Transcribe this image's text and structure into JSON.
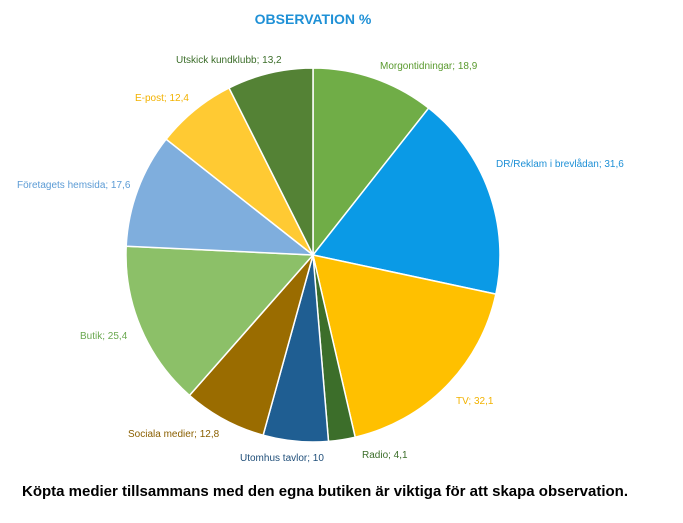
{
  "chart_data": {
    "type": "pie",
    "title": "OBSERVATION  %",
    "title_color": "#1E90D6",
    "start": "top",
    "direction": "clockwise",
    "labels": [
      {
        "name": "Morgontidningar",
        "value": 18.9,
        "text": "Morgontidningar; 18,9",
        "color": "#70AD47",
        "label_color": "#5A9A2E"
      },
      {
        "name": "DR/Reklam i brevlådan",
        "value": 31.6,
        "text": "DR/Reklam i brevlådan; 31,6",
        "color": "#0A9AE6",
        "label_color": "#1E90D6"
      },
      {
        "name": "TV",
        "value": 32.1,
        "text": "TV; 32,1",
        "color": "#FFC000",
        "label_color": "#F2B200"
      },
      {
        "name": "Radio",
        "value": 4.1,
        "text": "Radio; 4,1",
        "color": "#3C6E2A",
        "label_color": "#3C6E2A"
      },
      {
        "name": "Utomhus tavlor",
        "value": 10,
        "text": "Utomhus tavlor; 10",
        "color": "#1F5E92",
        "label_color": "#1F4E79"
      },
      {
        "name": "Sociala medier",
        "value": 12.8,
        "text": "Sociala medier; 12,8",
        "color": "#9A6C00",
        "label_color": "#8A5F00"
      },
      {
        "name": "Butik",
        "value": 25.4,
        "text": "Butik; 25,4",
        "color": "#8CC068",
        "label_color": "#6AA84F"
      },
      {
        "name": "Företagets hemsida",
        "value": 17.6,
        "text": "Företagets hemsida; 17,6",
        "color": "#7FAEDD",
        "label_color": "#5B9BD5"
      },
      {
        "name": "E-post",
        "value": 12.4,
        "text": "E-post; 12,4",
        "color": "#FFCA33",
        "label_color": "#F2B200"
      },
      {
        "name": "Utskick kundklubb",
        "value": 13.2,
        "text": "Utskick kundklubb; 13,2",
        "color": "#548235",
        "label_color": "#3C6E2A"
      }
    ]
  },
  "caption": "Köpta medier tillsammans med den egna butiken är viktiga för att skapa observation."
}
